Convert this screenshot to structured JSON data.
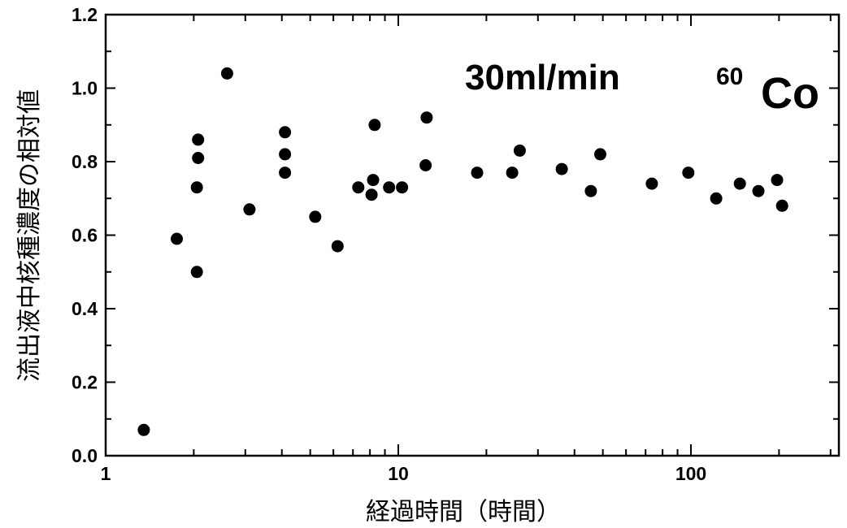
{
  "chart_data": {
    "type": "scatter",
    "x_scale": "log",
    "xlim": [
      1,
      500
    ],
    "ylim": [
      0.0,
      1.2
    ],
    "xlabel": "経過時間（時間）",
    "ylabel": "流出液中核種濃度の相対値",
    "x_ticks": [
      1,
      10,
      100
    ],
    "x_tick_labels": [
      "1",
      "10",
      "100"
    ],
    "y_ticks": [
      0.0,
      0.2,
      0.4,
      0.6,
      0.8,
      1.0,
      1.2
    ],
    "y_tick_labels": [
      "0.0",
      "0.2",
      "0.4",
      "0.6",
      "0.8",
      "1.0",
      "1.2"
    ],
    "grid": false,
    "marker_color": "#000000",
    "annotations": {
      "flow_rate": "30ml/min",
      "nuclide_mass": "60",
      "nuclide_symbol": "Co"
    },
    "series": [
      {
        "points": [
          [
            1.35,
            0.07
          ],
          [
            1.75,
            0.59
          ],
          [
            2.05,
            0.5
          ],
          [
            2.05,
            0.73
          ],
          [
            2.07,
            0.81
          ],
          [
            2.07,
            0.86
          ],
          [
            2.6,
            1.04
          ],
          [
            3.1,
            0.67
          ],
          [
            4.1,
            0.77
          ],
          [
            4.1,
            0.82
          ],
          [
            4.1,
            0.88
          ],
          [
            5.2,
            0.65
          ],
          [
            6.2,
            0.57
          ],
          [
            7.3,
            0.73
          ],
          [
            8.1,
            0.71
          ],
          [
            8.2,
            0.75
          ],
          [
            8.3,
            0.9
          ],
          [
            9.3,
            0.73
          ],
          [
            10.3,
            0.73
          ],
          [
            12.4,
            0.79
          ],
          [
            12.5,
            0.92
          ],
          [
            18.6,
            0.77
          ],
          [
            24.5,
            0.77
          ],
          [
            26.0,
            0.83
          ],
          [
            36.2,
            0.78
          ],
          [
            45.5,
            0.72
          ],
          [
            49.0,
            0.82
          ],
          [
            73.5,
            0.74
          ],
          [
            98.0,
            0.77
          ],
          [
            122.0,
            0.7
          ],
          [
            147.0,
            0.74
          ],
          [
            170.0,
            0.72
          ],
          [
            197.0,
            0.75
          ],
          [
            205.0,
            0.68
          ]
        ]
      }
    ]
  }
}
